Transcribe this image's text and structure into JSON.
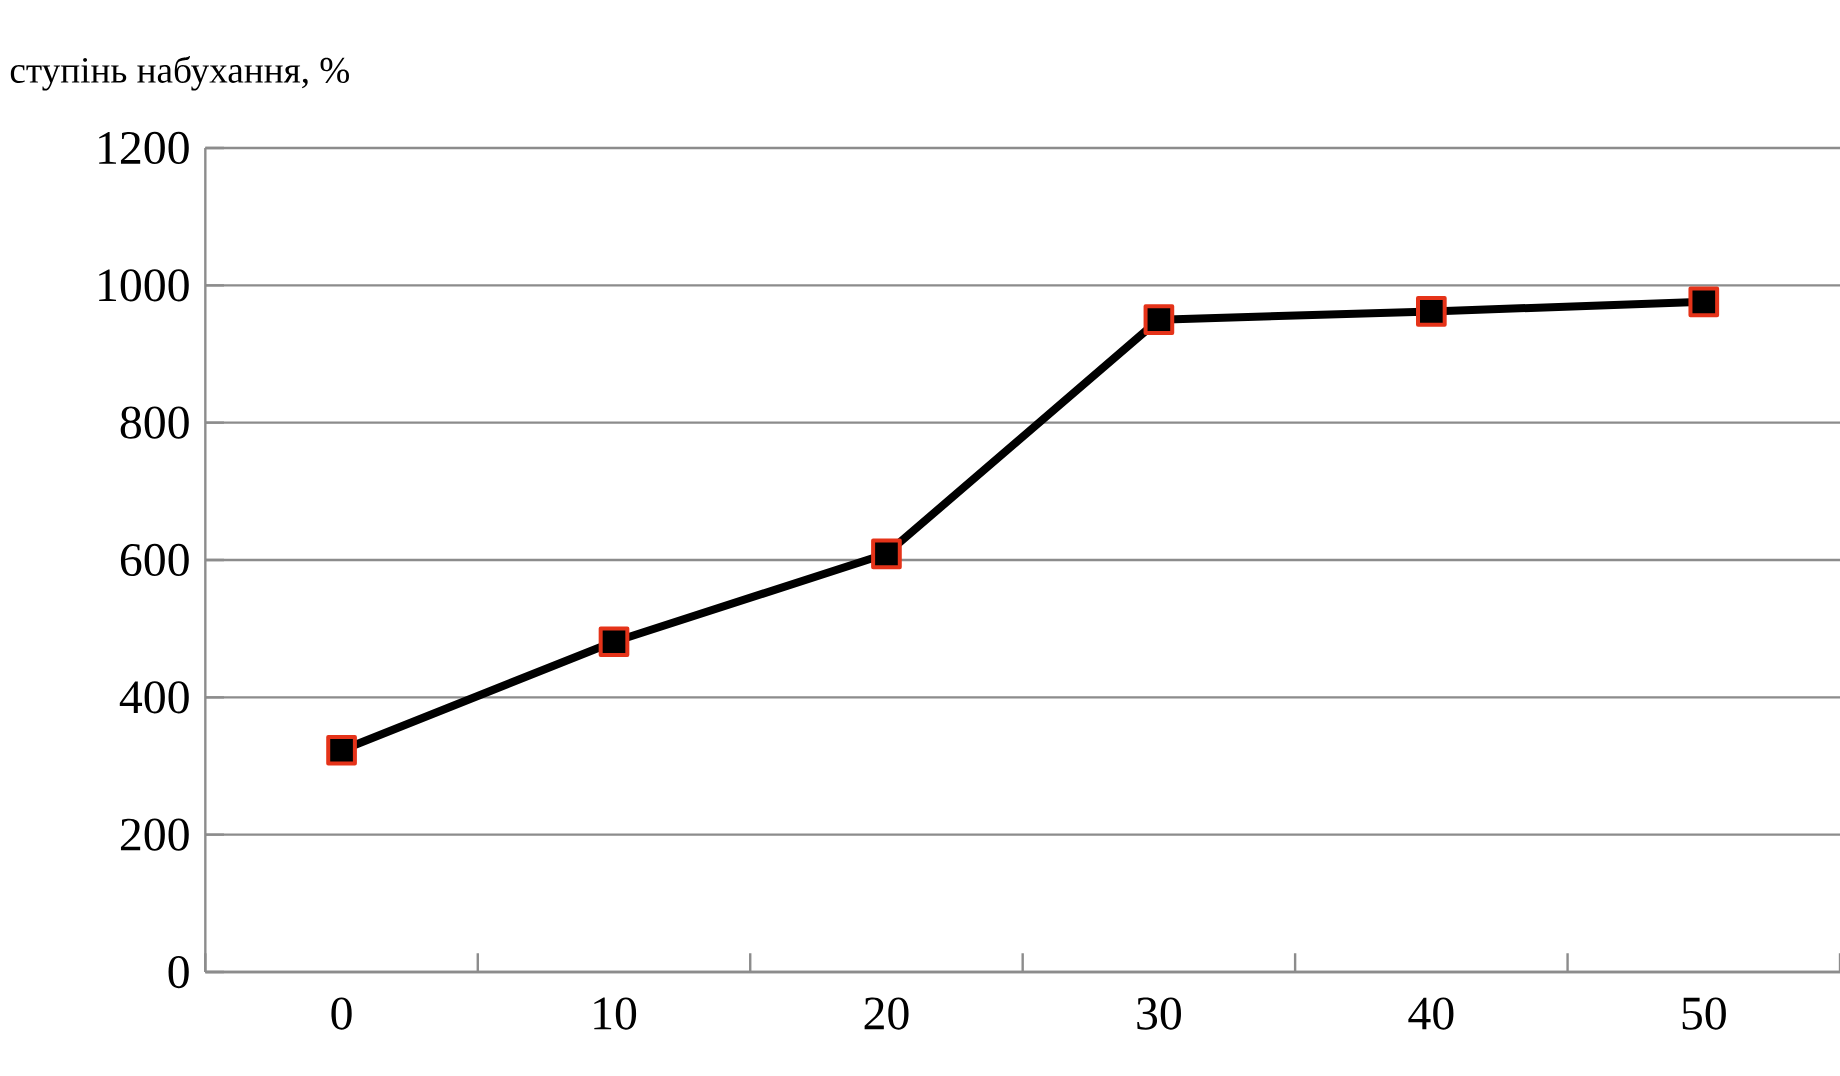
{
  "chart_data": {
    "type": "line",
    "ylabel": "ступінь набухання, %",
    "categories": [
      "0",
      "10",
      "20",
      "30",
      "40",
      "50"
    ],
    "series": [
      {
        "color": "#000000",
        "values": [
          323,
          481,
          609,
          950,
          962,
          976
        ]
      }
    ],
    "ylim": [
      0,
      1200
    ],
    "yticks": [
      0,
      200,
      400,
      600,
      800,
      1000,
      1200
    ],
    "grid": "y",
    "marker": "square",
    "line_style": "solid"
  }
}
